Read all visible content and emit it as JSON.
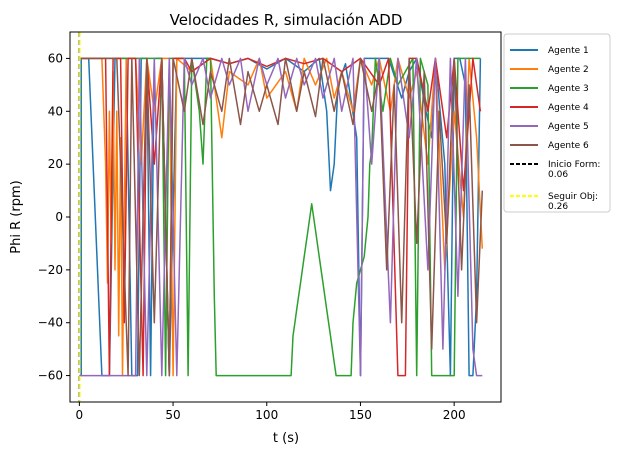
{
  "chart_data": {
    "type": "line",
    "title": "Velocidades R, simulación ADD",
    "xlabel": "t (s)",
    "ylabel": "Phi R (rpm)",
    "xlim": [
      -5,
      225
    ],
    "ylim": [
      -70,
      70
    ],
    "xticks": [
      0,
      50,
      100,
      150,
      200
    ],
    "yticks": [
      -60,
      -40,
      -20,
      0,
      20,
      40,
      60
    ],
    "xtick_labels": [
      "0",
      "50",
      "100",
      "150",
      "200"
    ],
    "ytick_labels": [
      "−60",
      "−40",
      "−20",
      "0",
      "20",
      "40",
      "60"
    ],
    "grid": false,
    "legend_position": "outside-right",
    "series": [
      {
        "name": "Agente 1",
        "color": "#1f77b4",
        "points": [
          [
            0,
            -60
          ],
          [
            1,
            -60
          ],
          [
            1,
            60
          ],
          [
            5,
            60
          ],
          [
            12,
            -60
          ],
          [
            16,
            -60
          ],
          [
            19,
            60
          ],
          [
            25,
            60
          ],
          [
            28,
            -60
          ],
          [
            31,
            -60
          ],
          [
            33,
            60
          ],
          [
            36,
            60
          ],
          [
            38,
            -60
          ],
          [
            40,
            60
          ],
          [
            44,
            60
          ],
          [
            48,
            -60
          ],
          [
            52,
            60
          ],
          [
            60,
            60
          ],
          [
            70,
            60
          ],
          [
            80,
            58
          ],
          [
            90,
            60
          ],
          [
            100,
            56
          ],
          [
            110,
            60
          ],
          [
            120,
            55
          ],
          [
            128,
            60
          ],
          [
            132,
            40
          ],
          [
            134,
            10
          ],
          [
            136,
            20
          ],
          [
            138,
            50
          ],
          [
            142,
            58
          ],
          [
            148,
            30
          ],
          [
            150,
            -60
          ],
          [
            152,
            60
          ],
          [
            160,
            60
          ],
          [
            165,
            60
          ],
          [
            172,
            45
          ],
          [
            176,
            55
          ],
          [
            180,
            60
          ],
          [
            185,
            40
          ],
          [
            188,
            30
          ],
          [
            190,
            60
          ],
          [
            195,
            20
          ],
          [
            198,
            -60
          ],
          [
            200,
            60
          ],
          [
            203,
            60
          ],
          [
            206,
            50
          ],
          [
            208,
            -60
          ],
          [
            210,
            -60
          ],
          [
            212,
            -30
          ],
          [
            214,
            60
          ]
        ]
      },
      {
        "name": "Agente 2",
        "color": "#ff7f0e",
        "points": [
          [
            0,
            60
          ],
          [
            10,
            60
          ],
          [
            12,
            60
          ],
          [
            14,
            20
          ],
          [
            15,
            -25
          ],
          [
            16,
            40
          ],
          [
            17,
            -10
          ],
          [
            18,
            55
          ],
          [
            19,
            -20
          ],
          [
            20,
            40
          ],
          [
            21,
            -45
          ],
          [
            22,
            30
          ],
          [
            23,
            -60
          ],
          [
            25,
            60
          ],
          [
            30,
            60
          ],
          [
            33,
            20
          ],
          [
            36,
            60
          ],
          [
            40,
            40
          ],
          [
            44,
            60
          ],
          [
            48,
            60
          ],
          [
            50,
            -60
          ],
          [
            52,
            60
          ],
          [
            60,
            55
          ],
          [
            70,
            60
          ],
          [
            76,
            30
          ],
          [
            80,
            55
          ],
          [
            90,
            50
          ],
          [
            96,
            60
          ],
          [
            100,
            45
          ],
          [
            110,
            55
          ],
          [
            116,
            40
          ],
          [
            120,
            60
          ],
          [
            126,
            50
          ],
          [
            132,
            60
          ],
          [
            136,
            45
          ],
          [
            140,
            55
          ],
          [
            146,
            40
          ],
          [
            150,
            60
          ],
          [
            156,
            50
          ],
          [
            160,
            60
          ],
          [
            166,
            40
          ],
          [
            170,
            60
          ],
          [
            176,
            45
          ],
          [
            180,
            55
          ],
          [
            186,
            20
          ],
          [
            190,
            60
          ],
          [
            195,
            -20
          ],
          [
            200,
            40
          ],
          [
            205,
            0
          ],
          [
            208,
            60
          ],
          [
            212,
            30
          ],
          [
            215,
            -12
          ]
        ]
      },
      {
        "name": "Agente 3",
        "color": "#2ca02c",
        "points": [
          [
            0,
            60
          ],
          [
            44,
            60
          ],
          [
            46,
            -60
          ],
          [
            48,
            60
          ],
          [
            56,
            60
          ],
          [
            58,
            -60
          ],
          [
            60,
            60
          ],
          [
            64,
            40
          ],
          [
            66,
            20
          ],
          [
            68,
            60
          ],
          [
            70,
            60
          ],
          [
            72,
            -30
          ],
          [
            73,
            -60
          ],
          [
            74,
            -60
          ],
          [
            112,
            -60
          ],
          [
            113,
            -60
          ],
          [
            114,
            -45
          ],
          [
            115,
            -40
          ],
          [
            116,
            -35
          ],
          [
            118,
            -25
          ],
          [
            120,
            -15
          ],
          [
            122,
            -5
          ],
          [
            124,
            5
          ],
          [
            125,
            0
          ],
          [
            126,
            -5
          ],
          [
            128,
            -15
          ],
          [
            130,
            -25
          ],
          [
            132,
            -35
          ],
          [
            134,
            -45
          ],
          [
            136,
            -55
          ],
          [
            137,
            -60
          ],
          [
            145,
            -60
          ],
          [
            146,
            -40
          ],
          [
            148,
            -25
          ],
          [
            150,
            -20
          ],
          [
            152,
            -15
          ],
          [
            154,
            0
          ],
          [
            155,
            20
          ],
          [
            156,
            25
          ],
          [
            158,
            60
          ],
          [
            162,
            40
          ],
          [
            166,
            60
          ],
          [
            170,
            50
          ],
          [
            178,
            60
          ],
          [
            180,
            -60
          ],
          [
            182,
            60
          ],
          [
            186,
            50
          ],
          [
            188,
            -60
          ],
          [
            200,
            -60
          ],
          [
            202,
            60
          ],
          [
            214,
            60
          ]
        ]
      },
      {
        "name": "Agente 4",
        "color": "#d62728",
        "points": [
          [
            0,
            60
          ],
          [
            10,
            60
          ],
          [
            14,
            60
          ],
          [
            16,
            -60
          ],
          [
            18,
            60
          ],
          [
            22,
            60
          ],
          [
            24,
            -40
          ],
          [
            26,
            60
          ],
          [
            30,
            60
          ],
          [
            34,
            -60
          ],
          [
            36,
            60
          ],
          [
            40,
            20
          ],
          [
            44,
            60
          ],
          [
            48,
            -60
          ],
          [
            50,
            60
          ],
          [
            56,
            60
          ],
          [
            60,
            55
          ],
          [
            70,
            60
          ],
          [
            80,
            58
          ],
          [
            90,
            60
          ],
          [
            100,
            57
          ],
          [
            110,
            60
          ],
          [
            120,
            58
          ],
          [
            130,
            60
          ],
          [
            140,
            55
          ],
          [
            150,
            60
          ],
          [
            160,
            50
          ],
          [
            165,
            60
          ],
          [
            170,
            -60
          ],
          [
            174,
            -60
          ],
          [
            176,
            60
          ],
          [
            180,
            60
          ],
          [
            186,
            40
          ],
          [
            190,
            60
          ],
          [
            196,
            30
          ],
          [
            200,
            60
          ],
          [
            205,
            10
          ],
          [
            210,
            60
          ],
          [
            214,
            40
          ]
        ]
      },
      {
        "name": "Agente 5",
        "color": "#9467bd",
        "points": [
          [
            0,
            -60
          ],
          [
            30,
            -60
          ],
          [
            32,
            60
          ],
          [
            36,
            -60
          ],
          [
            40,
            60
          ],
          [
            44,
            -60
          ],
          [
            48,
            60
          ],
          [
            52,
            -60
          ],
          [
            56,
            60
          ],
          [
            60,
            50
          ],
          [
            66,
            60
          ],
          [
            70,
            45
          ],
          [
            76,
            60
          ],
          [
            80,
            50
          ],
          [
            86,
            60
          ],
          [
            90,
            40
          ],
          [
            96,
            60
          ],
          [
            100,
            50
          ],
          [
            106,
            60
          ],
          [
            110,
            45
          ],
          [
            116,
            60
          ],
          [
            120,
            50
          ],
          [
            126,
            60
          ],
          [
            130,
            45
          ],
          [
            136,
            60
          ],
          [
            140,
            40
          ],
          [
            146,
            60
          ],
          [
            150,
            -60
          ],
          [
            152,
            60
          ],
          [
            156,
            20
          ],
          [
            160,
            60
          ],
          [
            166,
            -40
          ],
          [
            170,
            60
          ],
          [
            176,
            30
          ],
          [
            180,
            60
          ],
          [
            186,
            -20
          ],
          [
            190,
            60
          ],
          [
            194,
            -50
          ],
          [
            198,
            60
          ],
          [
            202,
            -30
          ],
          [
            206,
            60
          ],
          [
            210,
            -50
          ],
          [
            212,
            -60
          ],
          [
            215,
            -60
          ]
        ]
      },
      {
        "name": "Agente 6",
        "color": "#8c564b",
        "points": [
          [
            0,
            60
          ],
          [
            20,
            60
          ],
          [
            26,
            -60
          ],
          [
            28,
            60
          ],
          [
            32,
            -60
          ],
          [
            36,
            60
          ],
          [
            40,
            -40
          ],
          [
            44,
            60
          ],
          [
            48,
            -60
          ],
          [
            50,
            60
          ],
          [
            56,
            40
          ],
          [
            60,
            60
          ],
          [
            66,
            35
          ],
          [
            70,
            55
          ],
          [
            76,
            40
          ],
          [
            80,
            60
          ],
          [
            86,
            35
          ],
          [
            90,
            55
          ],
          [
            96,
            40
          ],
          [
            100,
            50
          ],
          [
            106,
            35
          ],
          [
            110,
            60
          ],
          [
            116,
            40
          ],
          [
            120,
            55
          ],
          [
            126,
            38
          ],
          [
            130,
            60
          ],
          [
            136,
            40
          ],
          [
            140,
            55
          ],
          [
            146,
            35
          ],
          [
            150,
            60
          ],
          [
            156,
            40
          ],
          [
            160,
            55
          ],
          [
            164,
            -20
          ],
          [
            168,
            50
          ],
          [
            172,
            -40
          ],
          [
            176,
            60
          ],
          [
            180,
            -10
          ],
          [
            184,
            55
          ],
          [
            188,
            -50
          ],
          [
            192,
            40
          ],
          [
            196,
            -10
          ],
          [
            200,
            60
          ],
          [
            204,
            -20
          ],
          [
            208,
            50
          ],
          [
            212,
            -40
          ],
          [
            215,
            10
          ]
        ]
      }
    ],
    "vlines": [
      {
        "name": "Inicio Form:\n0.06",
        "x": 0.06,
        "color": "#000000",
        "style": "dashed"
      },
      {
        "name": "Seguir Obj:\n0.26",
        "x": 0.26,
        "color": "#ffff00",
        "style": "dashed"
      }
    ],
    "legend_entries": [
      {
        "label": "Agente 1",
        "color": "#1f77b4",
        "style": "solid"
      },
      {
        "label": "Agente 2",
        "color": "#ff7f0e",
        "style": "solid"
      },
      {
        "label": "Agente 3",
        "color": "#2ca02c",
        "style": "solid"
      },
      {
        "label": "Agente 4",
        "color": "#d62728",
        "style": "solid"
      },
      {
        "label": "Agente 5",
        "color": "#9467bd",
        "style": "solid"
      },
      {
        "label": "Agente 6",
        "color": "#8c564b",
        "style": "solid"
      },
      {
        "label": "Inicio Form:",
        "label2": "0.06",
        "color": "#000000",
        "style": "dashed"
      },
      {
        "label": "Seguir Obj:",
        "label2": "0.26",
        "color": "#ffff00",
        "style": "dashed"
      }
    ]
  }
}
